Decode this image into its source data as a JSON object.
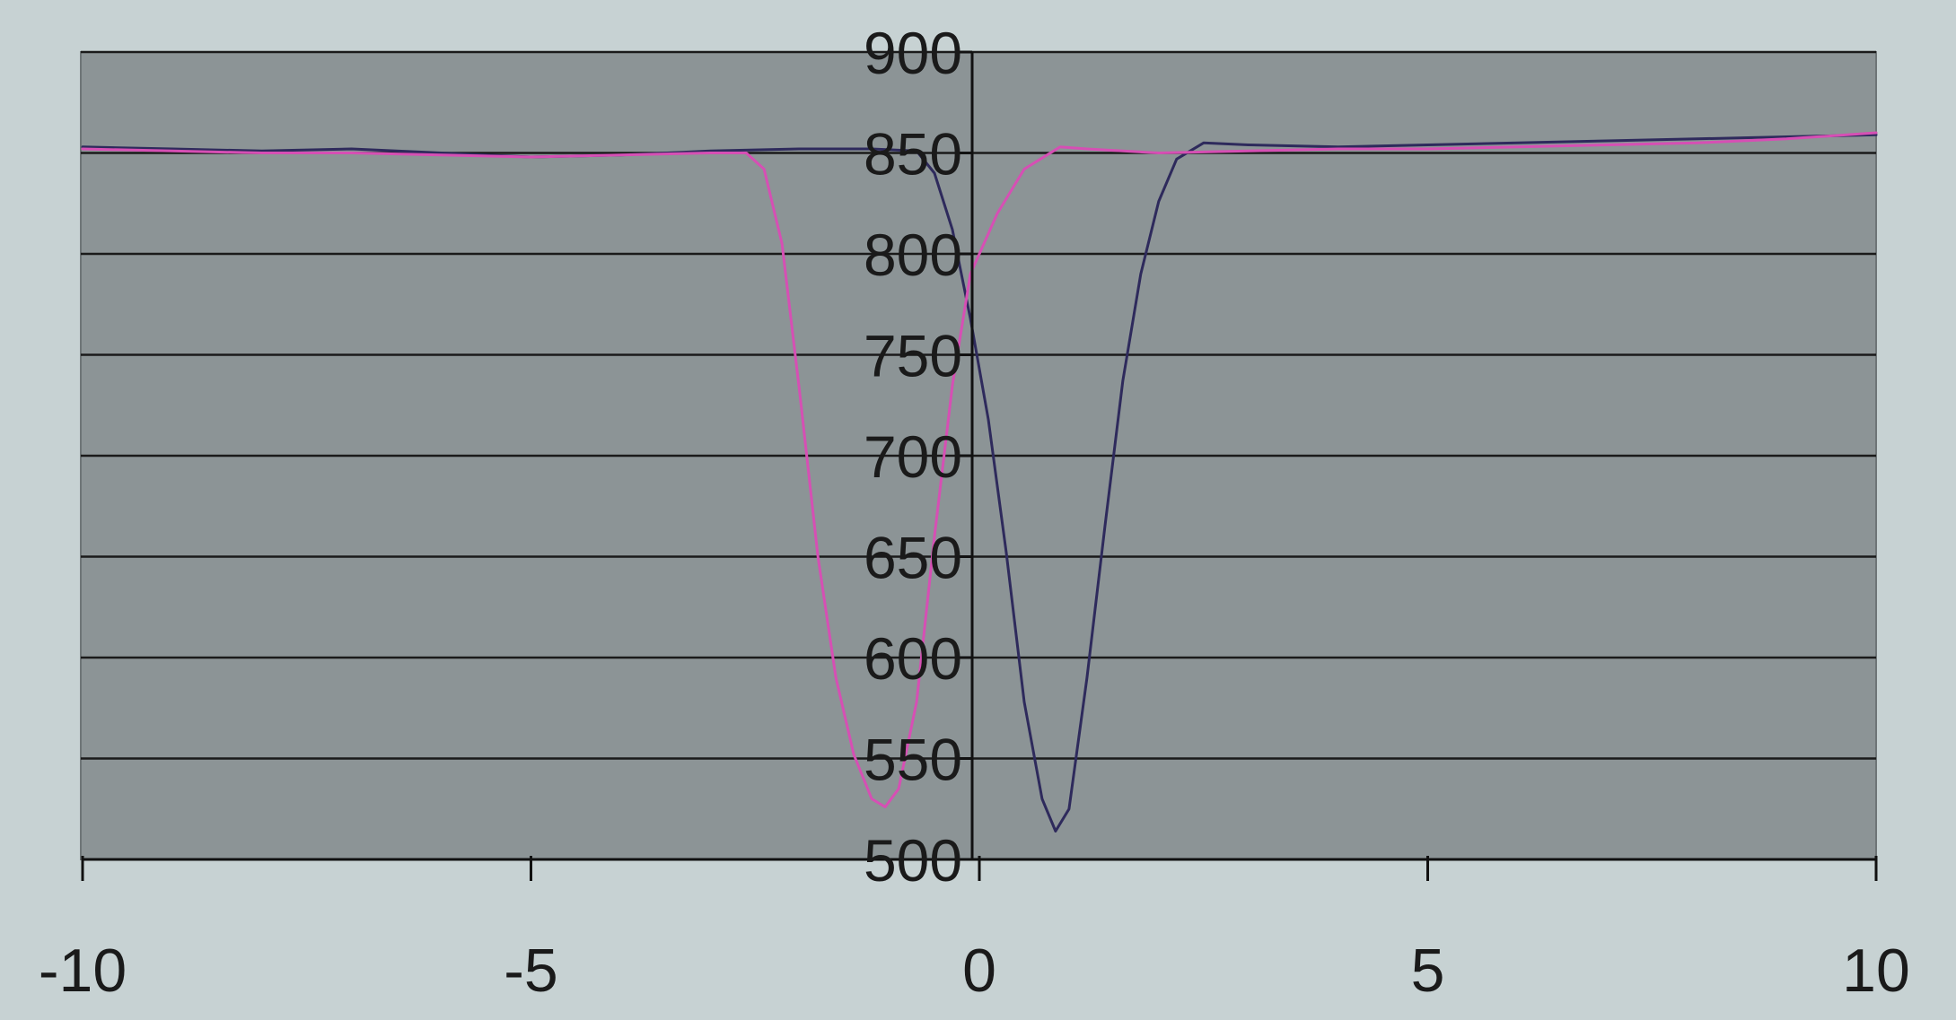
{
  "colors": {
    "page_background": "#c7d2d3",
    "plot_background": "#8c9496",
    "gridline": "#1a1a1a",
    "axis": "#111111",
    "tick_label": "#1a1a1a",
    "series_navy": "#2e2a5c",
    "series_magenta": "#d64fb4"
  },
  "chart_data": {
    "type": "line",
    "xlim": [
      -10,
      10
    ],
    "ylim": [
      500,
      900
    ],
    "x_ticks": [
      -10,
      -5,
      0,
      5,
      10
    ],
    "x_tick_labels": [
      "-10",
      "-5",
      "0",
      "5",
      "10"
    ],
    "y_ticks": [
      500,
      550,
      600,
      650,
      700,
      750,
      800,
      850,
      900
    ],
    "y_tick_labels": [
      "500",
      "550",
      "600",
      "650",
      "700",
      "750",
      "800",
      "850",
      "900"
    ],
    "grid": "horizontal",
    "legend": "none",
    "series": [
      {
        "color": "#2e2a5c",
        "points": [
          [
            -10,
            853
          ],
          [
            -9,
            852
          ],
          [
            -8,
            851
          ],
          [
            -7,
            852
          ],
          [
            -6,
            850
          ],
          [
            -5,
            848
          ],
          [
            -4,
            849
          ],
          [
            -3,
            851
          ],
          [
            -2,
            852
          ],
          [
            -1.2,
            852
          ],
          [
            -0.7,
            851
          ],
          [
            -0.5,
            840
          ],
          [
            -0.3,
            812
          ],
          [
            -0.1,
            768
          ],
          [
            0.1,
            718
          ],
          [
            0.3,
            652
          ],
          [
            0.5,
            578
          ],
          [
            0.7,
            530
          ],
          [
            0.85,
            514
          ],
          [
            1.0,
            525
          ],
          [
            1.2,
            590
          ],
          [
            1.4,
            665
          ],
          [
            1.6,
            737
          ],
          [
            1.8,
            790
          ],
          [
            2.0,
            826
          ],
          [
            2.2,
            847
          ],
          [
            2.5,
            855
          ],
          [
            3.0,
            854
          ],
          [
            4,
            853
          ],
          [
            5,
            854
          ],
          [
            6,
            855
          ],
          [
            7,
            856
          ],
          [
            8,
            857
          ],
          [
            9,
            858
          ],
          [
            10,
            859
          ]
        ]
      },
      {
        "color": "#d64fb4",
        "points": [
          [
            -10,
            852
          ],
          [
            -9,
            851
          ],
          [
            -8,
            850
          ],
          [
            -7,
            850
          ],
          [
            -6,
            849
          ],
          [
            -5,
            848
          ],
          [
            -4,
            849
          ],
          [
            -3,
            850
          ],
          [
            -2.6,
            850
          ],
          [
            -2.4,
            842
          ],
          [
            -2.2,
            805
          ],
          [
            -2.0,
            730
          ],
          [
            -1.8,
            650
          ],
          [
            -1.6,
            590
          ],
          [
            -1.4,
            552
          ],
          [
            -1.2,
            530
          ],
          [
            -1.05,
            526
          ],
          [
            -0.9,
            535
          ],
          [
            -0.7,
            578
          ],
          [
            -0.5,
            660
          ],
          [
            -0.3,
            735
          ],
          [
            -0.1,
            790
          ],
          [
            0.2,
            820
          ],
          [
            0.5,
            842
          ],
          [
            0.9,
            853
          ],
          [
            1.2,
            852
          ],
          [
            2,
            850
          ],
          [
            3,
            851
          ],
          [
            4,
            852
          ],
          [
            5,
            852
          ],
          [
            6,
            853
          ],
          [
            7,
            854
          ],
          [
            8,
            855
          ],
          [
            9,
            857
          ],
          [
            10,
            860
          ]
        ]
      }
    ]
  }
}
